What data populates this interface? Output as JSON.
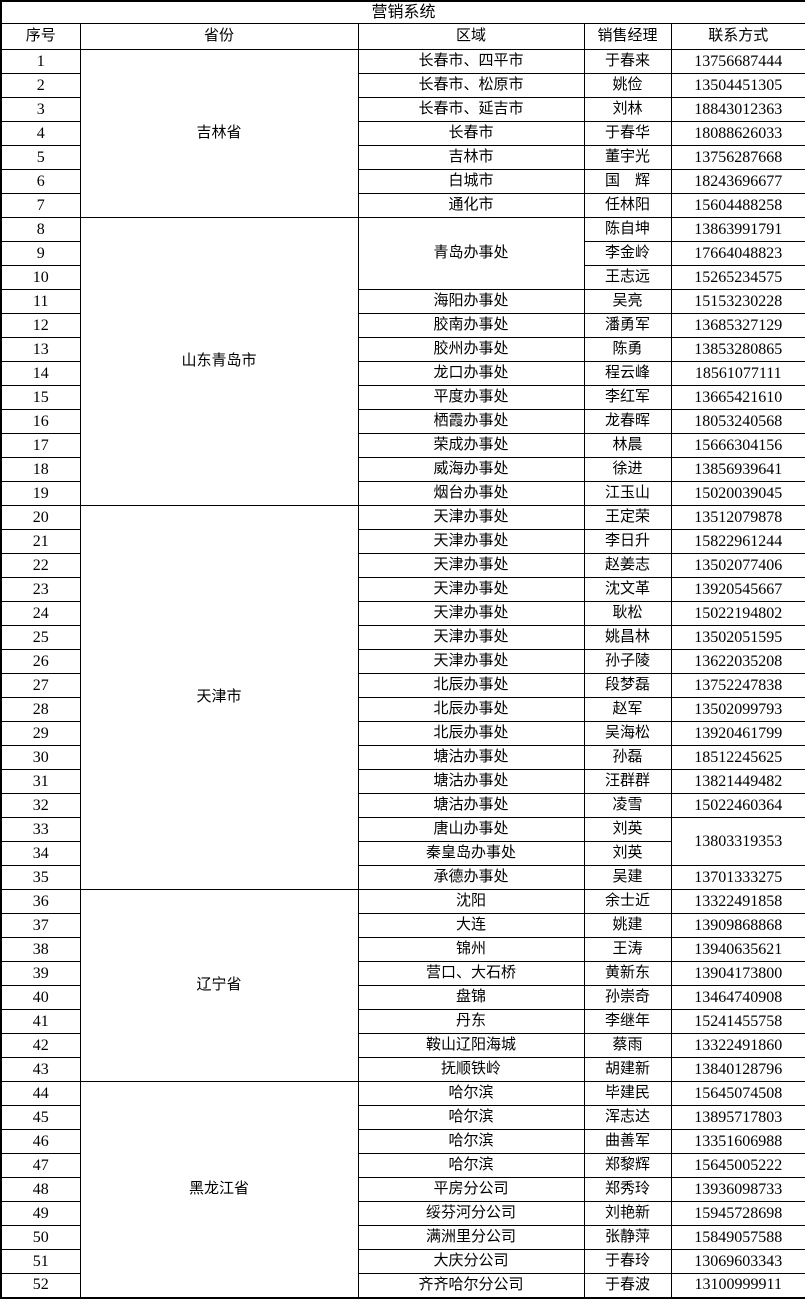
{
  "title": "营销系统",
  "table": {
    "headers": [
      "序号",
      "省份",
      "区域",
      "销售经理",
      "联系方式"
    ],
    "rows": [
      {
        "no": "1",
        "province": {
          "v": "吉林省",
          "rs": 7
        },
        "region": "长春市、四平市",
        "manager": "于春来",
        "contact": "13756687444"
      },
      {
        "no": "2",
        "region": "长春市、松原市",
        "manager": "姚俭",
        "contact": "13504451305"
      },
      {
        "no": "3",
        "region": "长春市、延吉市",
        "manager": "刘林",
        "contact": "18843012363"
      },
      {
        "no": "4",
        "region": "长春市",
        "manager": "于春华",
        "contact": "18088626033"
      },
      {
        "no": "5",
        "region": "吉林市",
        "manager": "董宇光",
        "contact": "13756287668"
      },
      {
        "no": "6",
        "region": "白城市",
        "manager": "国　辉",
        "contact": "18243696677"
      },
      {
        "no": "7",
        "region": "通化市",
        "manager": "任林阳",
        "contact": "15604488258"
      },
      {
        "no": "8",
        "province": {
          "v": "山东青岛市",
          "rs": 12
        },
        "region": {
          "v": "青岛办事处",
          "rs": 3
        },
        "manager": "陈自坤",
        "contact": "13863991791"
      },
      {
        "no": "9",
        "manager": "李金岭",
        "contact": "17664048823"
      },
      {
        "no": "10",
        "manager": "王志远",
        "contact": "15265234575"
      },
      {
        "no": "11",
        "region": "海阳办事处",
        "manager": "吴亮",
        "contact": "15153230228"
      },
      {
        "no": "12",
        "region": "胶南办事处",
        "manager": "潘勇军",
        "contact": "13685327129"
      },
      {
        "no": "13",
        "region": "胶州办事处",
        "manager": "陈勇",
        "contact": "13853280865"
      },
      {
        "no": "14",
        "region": "龙口办事处",
        "manager": "程云峰",
        "contact": "18561077111"
      },
      {
        "no": "15",
        "region": "平度办事处",
        "manager": "李红军",
        "contact": "13665421610"
      },
      {
        "no": "16",
        "region": "栖霞办事处",
        "manager": "龙春晖",
        "contact": "18053240568"
      },
      {
        "no": "17",
        "region": "荣成办事处",
        "manager": "林晨",
        "contact": "15666304156"
      },
      {
        "no": "18",
        "region": "威海办事处",
        "manager": "徐进",
        "contact": "13856939641"
      },
      {
        "no": "19",
        "region": "烟台办事处",
        "manager": "江玉山",
        "contact": "15020039045"
      },
      {
        "no": "20",
        "province": {
          "v": "天津市",
          "rs": 16
        },
        "region": "天津办事处",
        "manager": "王定荣",
        "contact": "13512079878"
      },
      {
        "no": "21",
        "region": "天津办事处",
        "manager": "李日升",
        "contact": "15822961244"
      },
      {
        "no": "22",
        "region": "天津办事处",
        "manager": "赵姜志",
        "contact": "13502077406"
      },
      {
        "no": "23",
        "region": "天津办事处",
        "manager": "沈文革",
        "contact": "13920545667"
      },
      {
        "no": "24",
        "region": "天津办事处",
        "manager": "耿松",
        "contact": "15022194802"
      },
      {
        "no": "25",
        "region": "天津办事处",
        "manager": "姚昌林",
        "contact": "13502051595"
      },
      {
        "no": "26",
        "region": "天津办事处",
        "manager": "孙子陵",
        "contact": "13622035208"
      },
      {
        "no": "27",
        "region": "北辰办事处",
        "manager": "段梦磊",
        "contact": "13752247838"
      },
      {
        "no": "28",
        "region": "北辰办事处",
        "manager": "赵军",
        "contact": "13502099793"
      },
      {
        "no": "29",
        "region": "北辰办事处",
        "manager": "吴海松",
        "contact": "13920461799"
      },
      {
        "no": "30",
        "region": "塘沽办事处",
        "manager": "孙磊",
        "contact": "18512245625"
      },
      {
        "no": "31",
        "region": "塘沽办事处",
        "manager": "汪群群",
        "contact": "13821449482"
      },
      {
        "no": "32",
        "region": "塘沽办事处",
        "manager": "凌雪",
        "contact": "15022460364"
      },
      {
        "no": "33",
        "region": "唐山办事处",
        "manager": "刘英",
        "contact": {
          "v": "13803319353",
          "rs": 2
        }
      },
      {
        "no": "34",
        "region": "秦皇岛办事处",
        "manager": "刘英"
      },
      {
        "no": "35",
        "region": "承德办事处",
        "manager": "吴建",
        "contact": "13701333275"
      },
      {
        "no": "36",
        "province": {
          "v": "辽宁省",
          "rs": 8
        },
        "region": "沈阳",
        "manager": "余士近",
        "contact": "13322491858"
      },
      {
        "no": "37",
        "region": "大连",
        "manager": "姚建",
        "contact": "13909868868"
      },
      {
        "no": "38",
        "region": "锦州",
        "manager": "王涛",
        "contact": "13940635621"
      },
      {
        "no": "39",
        "region": "营口、大石桥",
        "manager": "黄新东",
        "contact": "13904173800"
      },
      {
        "no": "40",
        "region": "盘锦",
        "manager": "孙崇奇",
        "contact": "13464740908"
      },
      {
        "no": "41",
        "region": "丹东",
        "manager": "李继年",
        "contact": "15241455758"
      },
      {
        "no": "42",
        "region": "鞍山辽阳海城",
        "manager": "蔡雨",
        "contact": "13322491860"
      },
      {
        "no": "43",
        "region": "抚顺铁岭",
        "manager": "胡建新",
        "contact": "13840128796"
      },
      {
        "no": "44",
        "province": {
          "v": "黑龙江省",
          "rs": 9
        },
        "region": "哈尔滨",
        "manager": "毕建民",
        "contact": "15645074508"
      },
      {
        "no": "45",
        "region": "哈尔滨",
        "manager": "浑志达",
        "contact": "13895717803"
      },
      {
        "no": "46",
        "region": "哈尔滨",
        "manager": "曲善军",
        "contact": "13351606988"
      },
      {
        "no": "47",
        "region": "哈尔滨",
        "manager": "郑黎辉",
        "contact": "15645005222"
      },
      {
        "no": "48",
        "region": "平房分公司",
        "manager": "郑秀玲",
        "contact": "13936098733"
      },
      {
        "no": "49",
        "region": "绥芬河分公司",
        "manager": "刘艳新",
        "contact": "15945728698"
      },
      {
        "no": "50",
        "region": "满洲里分公司",
        "manager": "张静萍",
        "contact": "15849057588"
      },
      {
        "no": "51",
        "region": "大庆分公司",
        "manager": "于春玲",
        "contact": "13069603343"
      },
      {
        "no": "52",
        "region": "齐齐哈尔分公司",
        "manager": "于春波",
        "contact": "13100999911"
      }
    ]
  }
}
